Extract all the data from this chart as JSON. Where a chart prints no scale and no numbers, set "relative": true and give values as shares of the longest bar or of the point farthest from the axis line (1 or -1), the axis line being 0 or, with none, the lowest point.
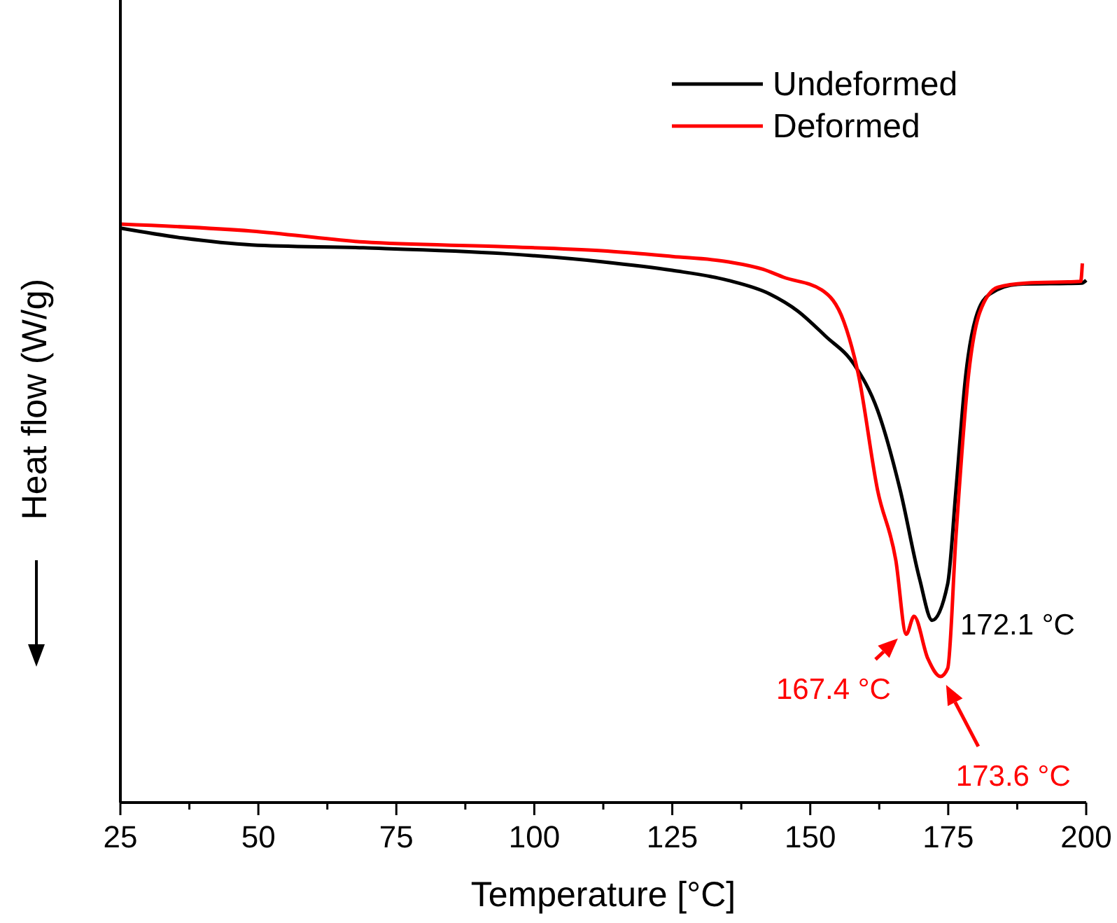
{
  "chart_data": {
    "type": "line",
    "relative": true,
    "xlabel": "Temperature [°C]",
    "ylabel": "Heat flow (W/g)",
    "xlim": [
      25,
      200
    ],
    "xticks": [
      25,
      {
        "value": 37.5,
        "label": null
      },
      50,
      {
        "value": 62.5,
        "label": null
      },
      75,
      {
        "value": 87.5,
        "label": null
      },
      100,
      {
        "value": 112.5,
        "label": null
      },
      125,
      {
        "value": 137.5,
        "label": null
      },
      150,
      {
        "value": 162.5,
        "label": null
      },
      175,
      {
        "value": 187.5,
        "label": null
      },
      200
    ],
    "legend": "top right",
    "grid": false,
    "series": [
      {
        "name": "Undeformed",
        "color": "#000000",
        "x": [
          25,
          36.2,
          48.8,
          69,
          94.5,
          112.2,
          125,
          135,
          142.7,
          147.7,
          152.8,
          157.9,
          162.2,
          166.3,
          169.8,
          172.1,
          174.9,
          176.4,
          178.2,
          180,
          182.5,
          187.6,
          199.2,
          200
        ],
        "values": [
          0.993,
          0.976,
          0.964,
          0.959,
          0.949,
          0.935,
          0.92,
          0.903,
          0.879,
          0.85,
          0.806,
          0.758,
          0.678,
          0.54,
          0.387,
          0.315,
          0.378,
          0.54,
          0.741,
          0.838,
          0.879,
          0.896,
          0.898,
          0.903
        ]
      },
      {
        "name": "Deformed",
        "color": "#ff0000",
        "x": [
          25,
          48.8,
          69.1,
          94.5,
          112.2,
          125,
          135,
          141.4,
          145.2,
          152.1,
          156.1,
          158.7,
          162.2,
          165.5,
          167.4,
          168.8,
          171.3,
          173.6,
          174.9,
          176.4,
          178.7,
          180.7,
          184,
          189.1,
          199,
          199.3
        ],
        "values": [
          1.0,
          0.988,
          0.969,
          0.961,
          0.954,
          0.944,
          0.935,
          0.922,
          0.908,
          0.886,
          0.831,
          0.741,
          0.54,
          0.419,
          0.291,
          0.322,
          0.249,
          0.218,
          0.232,
          0.46,
          0.741,
          0.847,
          0.891,
          0.898,
          0.901,
          0.932
        ]
      }
    ],
    "annotations": [
      {
        "text": "172.1 °C",
        "x": 172.1,
        "y": 0.315
      },
      {
        "text": "167.4 °C",
        "x": 167.4,
        "y": 0.291
      },
      {
        "text": "173.6 °C",
        "x": 173.6,
        "y": 0.218
      }
    ]
  }
}
